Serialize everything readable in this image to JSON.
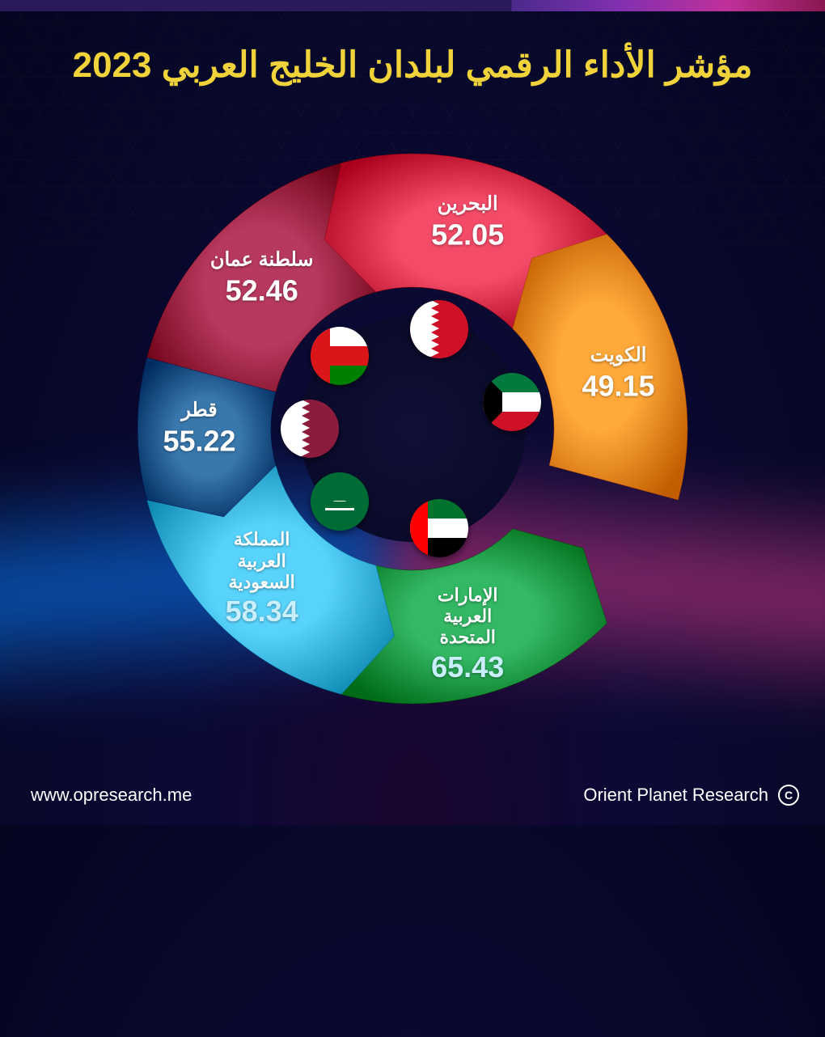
{
  "title": "مؤشر الأداء الرقمي لبلدان الخليج العربي 2023",
  "title_color": "#f0d23a",
  "title_fontsize": 44,
  "background_gradient": [
    "#1a0530",
    "#0a0a35",
    "#050520"
  ],
  "top_bar_gradient": [
    "#2a1a5a",
    "#4a2a8a",
    "#8030b0",
    "#c0309a",
    "#8a1850"
  ],
  "chart": {
    "type": "donut-infographic",
    "outer_radius": 340,
    "inner_radius": 175,
    "gap_at_bottom_deg": 30,
    "segments": [
      {
        "id": "oman",
        "name": "سلطنة عمان",
        "value": 52.46,
        "color": "#9a1b41",
        "start": -75,
        "end": -15
      },
      {
        "id": "bahrain",
        "name": "البحرين",
        "value": 52.05,
        "color": "#d62d4a",
        "start": -15,
        "end": 45
      },
      {
        "id": "kuwait",
        "name": "الكويت",
        "value": 49.15,
        "color": "#f08b1c",
        "start": 45,
        "end": 105
      },
      {
        "id": "uae",
        "name": "الإمارات العربية المتحدة",
        "value": 65.43,
        "color": "#159a46",
        "start": 135,
        "end": 195
      },
      {
        "id": "ksa",
        "name": "المملكة العربية السعودية",
        "value": 58.34,
        "color": "#3ab5de",
        "start": 195,
        "end": 255
      },
      {
        "id": "qatar",
        "name": "قطر",
        "value": 55.22,
        "color": "#1b5a8f",
        "start": 255,
        "end": 285
      }
    ],
    "value_fontsize": 36,
    "label_fontsize": 24,
    "label_color": "#ffffff",
    "flag_diameter": 72
  },
  "flags": {
    "oman": {
      "colors": [
        "#ffffff",
        "#db161b",
        "#008000"
      ],
      "type": "h-stripes-red-band"
    },
    "bahrain": {
      "colors": [
        "#ffffff",
        "#ce1126"
      ],
      "type": "serrated"
    },
    "kuwait": {
      "colors": [
        "#007a3d",
        "#ffffff",
        "#ce1126",
        "#000000"
      ],
      "type": "trapezoid"
    },
    "uae": {
      "colors": [
        "#00732f",
        "#ffffff",
        "#000000",
        "#ff0000"
      ],
      "type": "trapezoid"
    },
    "ksa": {
      "colors": [
        "#006c35",
        "#ffffff"
      ],
      "type": "solid-script"
    },
    "qatar": {
      "colors": [
        "#ffffff",
        "#8d1b3d"
      ],
      "type": "serrated"
    }
  },
  "footer": {
    "copyright": "Orient Planet Research",
    "url": "www.opresearch.me"
  }
}
